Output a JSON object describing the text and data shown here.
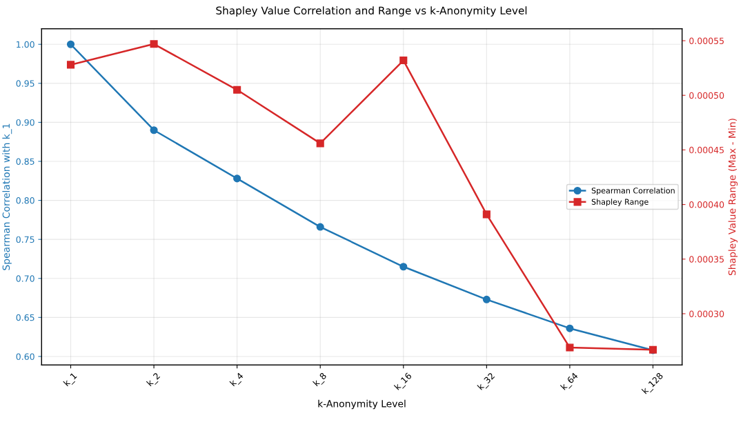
{
  "chart_data": {
    "type": "line",
    "title": "Shapley Value Correlation and Range vs k-Anonymity Level",
    "xlabel": "k-Anonymity Level",
    "ylabel": "Spearman Correlation with k_1",
    "y2label": "Shapley Value Range (Max - Min)",
    "categories": [
      "k_1",
      "k_2",
      "k_4",
      "k_8",
      "k_16",
      "k_32",
      "k_64",
      "k_128"
    ],
    "series": [
      {
        "name": "Spearman Correlation",
        "color": "#1f77b4",
        "marker": "circle",
        "values": [
          1.0,
          0.89,
          0.828,
          0.766,
          0.715,
          0.673,
          0.636,
          0.608
        ]
      },
      {
        "name": "Shapley Range",
        "color": "#d62728",
        "marker": "square",
        "axis": "y2",
        "values": [
          0.000528,
          0.000547,
          0.000505,
          0.000456,
          0.000532,
          0.000391,
          0.000269,
          0.000267
        ]
      }
    ],
    "ylim": [
      0.589,
      1.02
    ],
    "yticks": [
      {
        "value": 0.6,
        "label": "0.60"
      },
      {
        "value": 0.65,
        "label": "0.65"
      },
      {
        "value": 0.7,
        "label": "0.70"
      },
      {
        "value": 0.75,
        "label": "0.75"
      },
      {
        "value": 0.8,
        "label": "0.80"
      },
      {
        "value": 0.85,
        "label": "0.85"
      },
      {
        "value": 0.9,
        "label": "0.90"
      },
      {
        "value": 0.95,
        "label": "0.95"
      },
      {
        "value": 1.0,
        "label": "1.00"
      }
    ],
    "y2lim": [
      0.000253,
      0.000561
    ],
    "y2ticks": [
      {
        "value": 0.0003,
        "label": "0.00030"
      },
      {
        "value": 0.00035,
        "label": "0.00035"
      },
      {
        "value": 0.0004,
        "label": "0.00040"
      },
      {
        "value": 0.00045,
        "label": "0.00045"
      },
      {
        "value": 0.0005,
        "label": "0.00050"
      },
      {
        "value": 0.00055,
        "label": "0.00055"
      }
    ],
    "grid": true,
    "legend": "right",
    "line_style": "solid"
  }
}
